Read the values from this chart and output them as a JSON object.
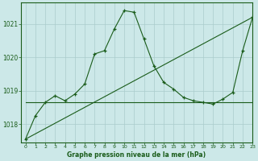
{
  "title": "Graphe pression niveau de la mer (hPa)",
  "background_color": "#cce8e8",
  "grid_color": "#aacccc",
  "line_color": "#1a5c1a",
  "xlim": [
    -0.5,
    23
  ],
  "ylim": [
    1017.45,
    1021.65
  ],
  "yticks": [
    1018,
    1019,
    1020,
    1021
  ],
  "xticks": [
    0,
    1,
    2,
    3,
    4,
    5,
    6,
    7,
    8,
    9,
    10,
    11,
    12,
    13,
    14,
    15,
    16,
    17,
    18,
    19,
    20,
    21,
    22,
    23
  ],
  "series1_x": [
    0,
    1,
    2,
    3,
    4,
    5,
    6,
    7,
    8,
    9,
    10,
    11,
    12,
    13,
    14,
    15,
    16,
    17,
    18,
    19,
    20,
    21,
    22,
    23
  ],
  "series1_y": [
    1017.55,
    1018.25,
    1018.65,
    1018.85,
    1018.7,
    1018.9,
    1019.2,
    1020.1,
    1020.2,
    1020.85,
    1021.4,
    1021.35,
    1020.55,
    1019.75,
    1019.25,
    1019.05,
    1018.8,
    1018.7,
    1018.65,
    1018.6,
    1018.75,
    1018.95,
    1020.2,
    1021.2
  ],
  "series2_x": [
    0,
    1,
    2,
    3,
    4,
    5,
    6,
    7,
    8,
    9,
    10,
    11,
    12,
    13,
    14,
    15,
    16,
    17,
    18,
    19,
    20,
    21,
    22,
    23
  ],
  "series2_y": [
    1018.65,
    1018.65,
    1018.65,
    1018.65,
    1018.65,
    1018.65,
    1018.65,
    1018.65,
    1018.65,
    1018.65,
    1018.65,
    1018.65,
    1018.65,
    1018.65,
    1018.65,
    1018.65,
    1018.65,
    1018.65,
    1018.65,
    1018.65,
    1018.65,
    1018.65,
    1018.65,
    1018.65
  ],
  "series3_x": [
    0,
    23
  ],
  "series3_y": [
    1017.55,
    1021.2
  ]
}
